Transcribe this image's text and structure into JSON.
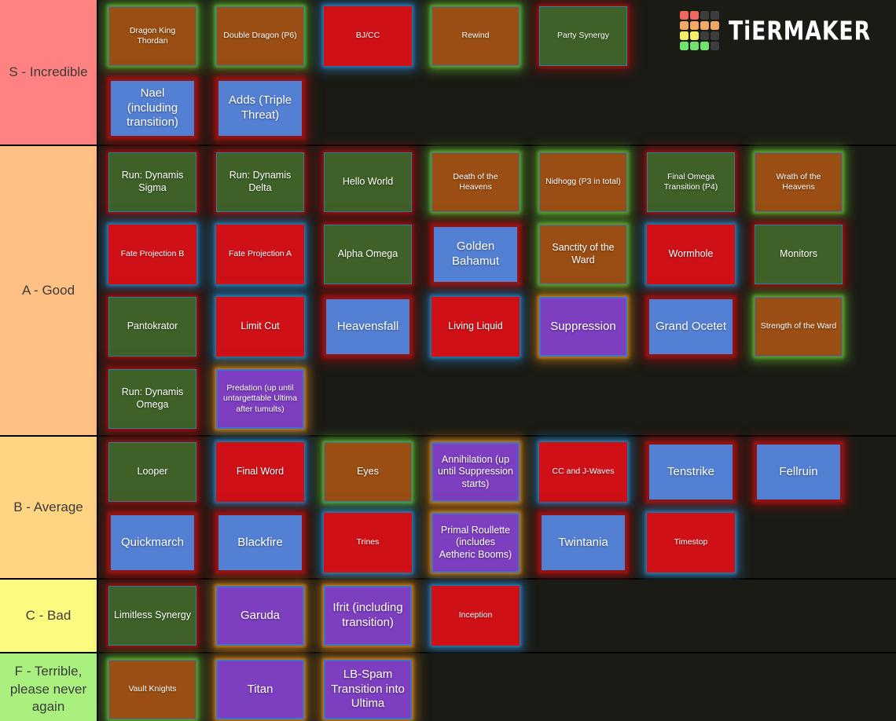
{
  "page": {
    "background": "#1b1b15",
    "logo": {
      "text": "TiERMAKER",
      "squares": [
        "#f0695f",
        "#f0695f",
        "#3d3d3d",
        "#3d3d3d",
        "#f2a963",
        "#f2a963",
        "#f2a963",
        "#f2a963",
        "#f5ee67",
        "#f5ee67",
        "#3d3d3d",
        "#3d3d3d",
        "#6fe26f",
        "#6fe26f",
        "#6fe26f",
        "#3d3d3d"
      ]
    }
  },
  "palette": {
    "tile_brown": "#9a4e13",
    "tile_green": "#3f6128",
    "tile_red": "#cf1117",
    "tile_blue": "#5480d4",
    "tile_purple": "#7d3ec0",
    "glow_green": "#5aaa2d",
    "glow_red": "#8e1414",
    "glow_blue": "#2d82be",
    "glow_orange": "#c87a1e"
  },
  "rows": [
    {
      "id": "S",
      "label": "S - Incredible",
      "color": "#ff8282",
      "lines": [
        [
          {
            "label": "Dragon King Thordan",
            "bg": "brown",
            "glow": "green",
            "size": "sm"
          },
          {
            "label": "Double Dragon (P6)",
            "bg": "brown",
            "glow": "green",
            "size": "sm"
          },
          {
            "label": "BJ/CC",
            "bg": "red",
            "glow": "blue",
            "size": "sm"
          },
          {
            "label": "Rewind",
            "bg": "brown",
            "glow": "green",
            "size": "sm"
          },
          {
            "label": "Party Synergy",
            "bg": "green",
            "glow": "red",
            "size": "sm"
          }
        ],
        [
          {
            "label": "Nael (including transition)",
            "bg": "blue",
            "glow": "red",
            "size": "lg"
          },
          {
            "label": "Adds (Triple Threat)",
            "bg": "blue",
            "glow": "red",
            "size": "lg"
          }
        ]
      ]
    },
    {
      "id": "A",
      "label": "A - Good",
      "color": "#ffc183",
      "lines": [
        [
          {
            "label": "Run: Dynamis Sigma",
            "bg": "green",
            "glow": "red",
            "size": "md"
          },
          {
            "label": "Run: Dynamis Delta",
            "bg": "green",
            "glow": "red",
            "size": "md"
          },
          {
            "label": "Hello World",
            "bg": "green",
            "glow": "red",
            "size": "md"
          },
          {
            "label": "Death of the Heavens",
            "bg": "brown",
            "glow": "green",
            "size": "sm"
          },
          {
            "label": "Nidhogg (P3 in total)",
            "bg": "brown",
            "glow": "green",
            "size": "sm"
          },
          {
            "label": "Final Omega Transition (P4)",
            "bg": "green",
            "glow": "red",
            "size": "sm"
          },
          {
            "label": "Wrath of the Heavens",
            "bg": "brown",
            "glow": "green",
            "size": "sm"
          }
        ],
        [
          {
            "label": "Fate Projection B",
            "bg": "red",
            "glow": "blue",
            "size": "sm"
          },
          {
            "label": "Fate Projection A",
            "bg": "red",
            "glow": "blue",
            "size": "sm"
          },
          {
            "label": "Alpha Omega",
            "bg": "green",
            "glow": "red",
            "size": "md"
          },
          {
            "label": "Golden Bahamut",
            "bg": "blue",
            "glow": "red",
            "size": "lg"
          },
          {
            "label": "Sanctity of the Ward",
            "bg": "brown",
            "glow": "green",
            "size": "md"
          },
          {
            "label": "Wormhole",
            "bg": "red",
            "glow": "blue",
            "size": "md"
          },
          {
            "label": "Monitors",
            "bg": "green",
            "glow": "red",
            "size": "md"
          }
        ],
        [
          {
            "label": "Pantokrator",
            "bg": "green",
            "glow": "red",
            "size": "md"
          },
          {
            "label": "Limit Cut",
            "bg": "red",
            "glow": "blue",
            "size": "md"
          },
          {
            "label": "Heavensfall",
            "bg": "blue",
            "glow": "red",
            "size": "lg"
          },
          {
            "label": "Living Liquid",
            "bg": "red",
            "glow": "blue",
            "size": "md"
          },
          {
            "label": "Suppression",
            "bg": "purple",
            "glow": "orange",
            "size": "lg"
          },
          {
            "label": "Grand Ocetet",
            "bg": "blue",
            "glow": "red",
            "size": "lg"
          },
          {
            "label": "Strength of the Ward",
            "bg": "brown",
            "glow": "green",
            "size": "sm"
          }
        ],
        [
          {
            "label": "Run: Dynamis Omega",
            "bg": "green",
            "glow": "red",
            "size": "md"
          },
          {
            "label": "Predation (up until untargettable Ultima after tumults)",
            "bg": "purple",
            "glow": "orange",
            "size": "sm"
          }
        ]
      ]
    },
    {
      "id": "B",
      "label": "B - Average",
      "color": "#ffd583",
      "lines": [
        [
          {
            "label": "Looper",
            "bg": "green",
            "glow": "red",
            "size": "md"
          },
          {
            "label": "Final Word",
            "bg": "red",
            "glow": "blue",
            "size": "md"
          },
          {
            "label": "Eyes",
            "bg": "brown",
            "glow": "green",
            "size": "md"
          },
          {
            "label": "Annihilation (up until Suppression starts)",
            "bg": "purple",
            "glow": "orange",
            "size": "md"
          },
          {
            "label": "CC and J-Waves",
            "bg": "red",
            "glow": "blue",
            "size": "sm"
          },
          {
            "label": "Tenstrike",
            "bg": "blue",
            "glow": "red",
            "size": "lg"
          },
          {
            "label": "Fellruin",
            "bg": "blue",
            "glow": "red",
            "size": "lg"
          }
        ],
        [
          {
            "label": "Quickmarch",
            "bg": "blue",
            "glow": "red",
            "size": "lg"
          },
          {
            "label": "Blackfire",
            "bg": "blue",
            "glow": "red",
            "size": "lg"
          },
          {
            "label": "Trines",
            "bg": "red",
            "glow": "blue",
            "size": "sm"
          },
          {
            "label": "Primal Roullette (includes Aetheric Booms)",
            "bg": "purple",
            "glow": "orange",
            "size": "md"
          },
          {
            "label": "Twintania",
            "bg": "blue",
            "glow": "red",
            "size": "lg"
          },
          {
            "label": "Timestop",
            "bg": "red",
            "glow": "blue",
            "size": "sm"
          }
        ]
      ]
    },
    {
      "id": "C",
      "label": "C - Bad",
      "color": "#fbfb7f",
      "lines": [
        [
          {
            "label": "Limitless Synergy",
            "bg": "green",
            "glow": "red",
            "size": "md"
          },
          {
            "label": "Garuda",
            "bg": "purple",
            "glow": "orange",
            "size": "lg"
          },
          {
            "label": "Ifrit (including transition)",
            "bg": "purple",
            "glow": "orange",
            "size": "lg"
          },
          {
            "label": "Inception",
            "bg": "red",
            "glow": "blue",
            "size": "sm"
          }
        ]
      ]
    },
    {
      "id": "F",
      "label": "F - Terrible, please never again",
      "color": "#aaf07e",
      "lines": [
        [
          {
            "label": "Vault Knights",
            "bg": "brown",
            "glow": "green",
            "size": "sm"
          },
          {
            "label": "Titan",
            "bg": "purple",
            "glow": "orange",
            "size": "lg"
          },
          {
            "label": "LB-Spam Transition into Ultima",
            "bg": "purple",
            "glow": "orange",
            "size": "lg"
          }
        ]
      ]
    }
  ]
}
